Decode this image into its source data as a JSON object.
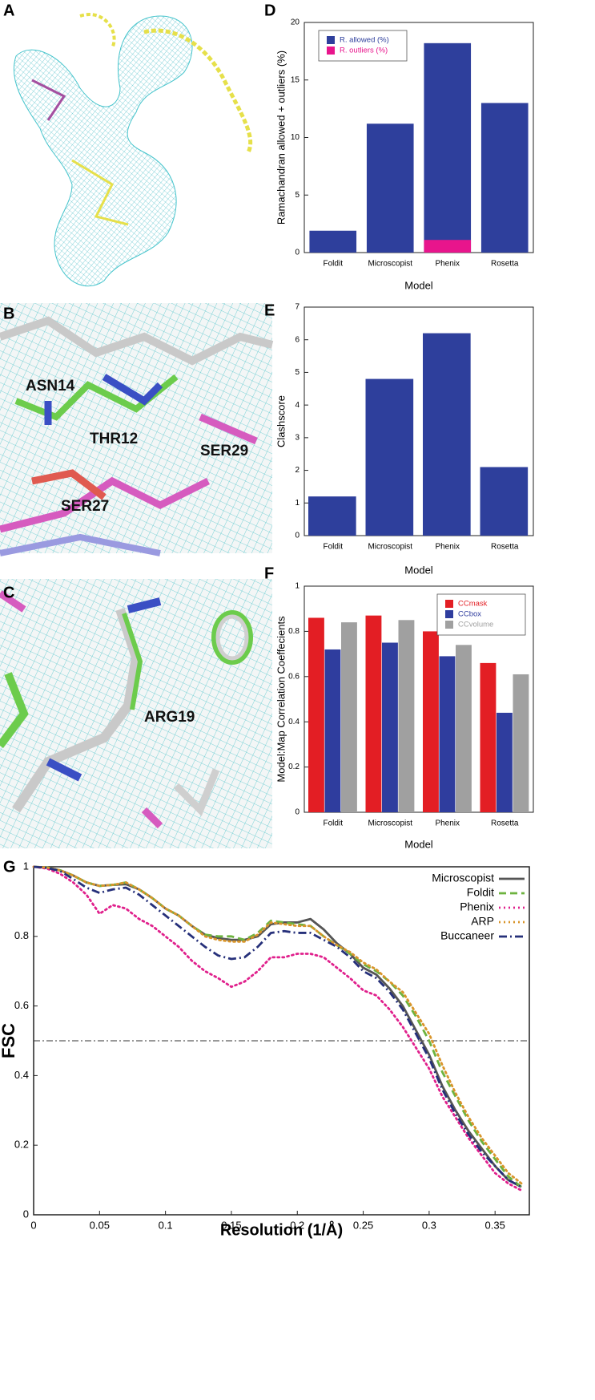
{
  "image_panels": [
    {
      "panel": "A",
      "labels": []
    },
    {
      "panel": "B",
      "labels": [
        "ASN14",
        "THR12",
        "SER29",
        "SER27"
      ]
    },
    {
      "panel": "C",
      "labels": [
        "ARG19"
      ]
    }
  ],
  "chart_data": [
    {
      "type": "bar",
      "panel": "D",
      "barmode": "overlay",
      "legend": "upper left",
      "y_label": "Ramachandran allowed + outliers (%)",
      "x_label": "Model",
      "categories": [
        "Foldit",
        "Microscopist",
        "Phenix",
        "Rosetta"
      ],
      "series": [
        {
          "name": "R. allowed (%)",
          "color": "#2e3f9c",
          "values": [
            1.9,
            11.2,
            18.2,
            13.0
          ]
        },
        {
          "name": "R. outliers (%)",
          "color": "#e8158c",
          "values": [
            0,
            0,
            1.1,
            0
          ]
        }
      ],
      "ylim": [
        0,
        20
      ],
      "yticks": [
        0,
        5,
        10,
        15,
        20
      ]
    },
    {
      "type": "bar",
      "panel": "E",
      "barmode": "group",
      "y_label": "Clashscore",
      "x_label": "Model",
      "categories": [
        "Foldit",
        "Microscopist",
        "Phenix",
        "Rosetta"
      ],
      "series": [
        {
          "color": "#2e3f9c",
          "values": [
            1.2,
            4.8,
            6.2,
            2.1
          ]
        }
      ],
      "ylim": [
        0,
        7
      ],
      "yticks": [
        0,
        1,
        2,
        3,
        4,
        5,
        6,
        7
      ]
    },
    {
      "type": "bar",
      "panel": "F",
      "barmode": "group",
      "legend": "upper right",
      "y_label": "Model:Map Correlation Coeffecients",
      "x_label": "Model",
      "categories": [
        "Foldit",
        "Microscopist",
        "Phenix",
        "Rosetta"
      ],
      "series": [
        {
          "name": "CCmask",
          "color": "#e31e24",
          "values": [
            0.86,
            0.87,
            0.8,
            0.66
          ]
        },
        {
          "name": "CCbox",
          "color": "#2f3d9e",
          "values": [
            0.72,
            0.75,
            0.69,
            0.44
          ]
        },
        {
          "name": "CCvolume",
          "color": "#a0a0a0",
          "values": [
            0.84,
            0.85,
            0.74,
            0.61
          ]
        }
      ],
      "ylim": [
        0,
        1
      ],
      "yticks": [
        0,
        0.2,
        0.4,
        0.6,
        0.8,
        1
      ]
    },
    {
      "type": "line",
      "panel": "G",
      "legend": "upper right",
      "y_label": "FSC",
      "x_label": "Resolution (1/Å)",
      "x": [
        0,
        0.01,
        0.02,
        0.03,
        0.04,
        0.05,
        0.06,
        0.07,
        0.08,
        0.09,
        0.1,
        0.11,
        0.12,
        0.13,
        0.14,
        0.15,
        0.16,
        0.17,
        0.18,
        0.19,
        0.2,
        0.21,
        0.22,
        0.23,
        0.24,
        0.25,
        0.26,
        0.27,
        0.28,
        0.29,
        0.3,
        0.31,
        0.32,
        0.33,
        0.34,
        0.35,
        0.36,
        0.37
      ],
      "series": [
        {
          "name": "Microscopist",
          "color": "#555555",
          "linestyle": "solid",
          "values": [
            1.0,
            0.998,
            0.99,
            0.975,
            0.955,
            0.945,
            0.948,
            0.95,
            0.935,
            0.91,
            0.88,
            0.86,
            0.83,
            0.805,
            0.795,
            0.79,
            0.79,
            0.8,
            0.835,
            0.84,
            0.84,
            0.85,
            0.82,
            0.78,
            0.75,
            0.71,
            0.69,
            0.65,
            0.6,
            0.53,
            0.46,
            0.37,
            0.3,
            0.24,
            0.19,
            0.14,
            0.1,
            0.08
          ]
        },
        {
          "name": "Foldit",
          "color": "#6db33f",
          "linestyle": "dashed",
          "values": [
            1.0,
            0.998,
            0.99,
            0.975,
            0.955,
            0.945,
            0.948,
            0.955,
            0.935,
            0.91,
            0.88,
            0.86,
            0.83,
            0.805,
            0.8,
            0.8,
            0.79,
            0.81,
            0.845,
            0.84,
            0.835,
            0.83,
            0.8,
            0.775,
            0.75,
            0.72,
            0.7,
            0.67,
            0.63,
            0.57,
            0.5,
            0.41,
            0.34,
            0.27,
            0.21,
            0.16,
            0.11,
            0.08
          ]
        },
        {
          "name": "Phenix",
          "color": "#e0208c",
          "linestyle": "dotted",
          "values": [
            1.0,
            0.995,
            0.98,
            0.955,
            0.92,
            0.865,
            0.89,
            0.88,
            0.85,
            0.83,
            0.8,
            0.77,
            0.73,
            0.7,
            0.68,
            0.655,
            0.67,
            0.7,
            0.74,
            0.74,
            0.75,
            0.75,
            0.74,
            0.71,
            0.68,
            0.645,
            0.63,
            0.59,
            0.54,
            0.48,
            0.42,
            0.34,
            0.28,
            0.22,
            0.17,
            0.12,
            0.09,
            0.07
          ]
        },
        {
          "name": "ARP",
          "color": "#d9952b",
          "linestyle": "dotted",
          "values": [
            1.0,
            0.998,
            0.99,
            0.975,
            0.955,
            0.945,
            0.948,
            0.955,
            0.935,
            0.91,
            0.88,
            0.86,
            0.83,
            0.8,
            0.79,
            0.785,
            0.785,
            0.805,
            0.84,
            0.835,
            0.83,
            0.83,
            0.8,
            0.775,
            0.755,
            0.725,
            0.705,
            0.67,
            0.64,
            0.58,
            0.52,
            0.43,
            0.35,
            0.28,
            0.22,
            0.17,
            0.12,
            0.09
          ]
        },
        {
          "name": "Buccaneer",
          "color": "#26307a",
          "linestyle": "dashdot",
          "values": [
            1.0,
            0.997,
            0.988,
            0.965,
            0.94,
            0.925,
            0.935,
            0.94,
            0.92,
            0.89,
            0.86,
            0.83,
            0.8,
            0.77,
            0.745,
            0.735,
            0.74,
            0.77,
            0.81,
            0.815,
            0.81,
            0.81,
            0.79,
            0.77,
            0.74,
            0.7,
            0.68,
            0.64,
            0.59,
            0.52,
            0.45,
            0.36,
            0.29,
            0.23,
            0.18,
            0.14,
            0.1,
            0.08
          ]
        }
      ],
      "hline": 0.5,
      "xlim": [
        0,
        0.376
      ],
      "xticks": [
        0,
        0.05,
        0.1,
        0.15,
        0.2,
        0.25,
        0.3,
        0.35
      ],
      "ylim": [
        0,
        1
      ],
      "yticks": [
        0,
        0.2,
        0.4,
        0.6,
        0.8,
        1
      ]
    }
  ]
}
